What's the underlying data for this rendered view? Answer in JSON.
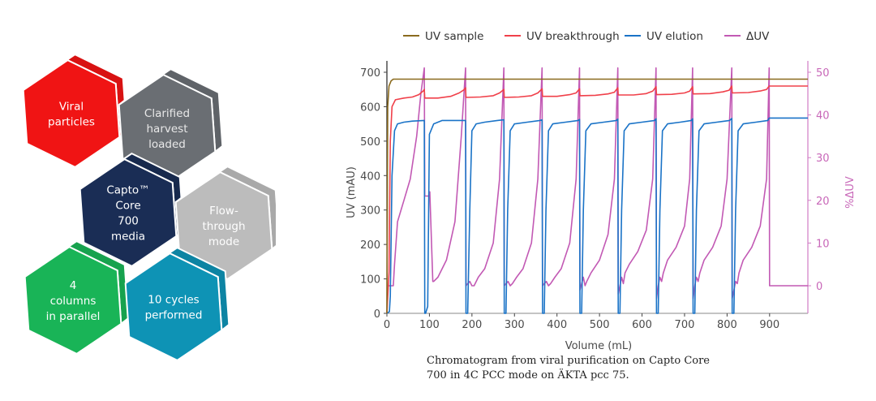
{
  "infographic": {
    "hexagons": [
      {
        "id": "viral",
        "lines": [
          "Viral",
          "particles"
        ],
        "color": "#f01414",
        "text_color": "#ffffff"
      },
      {
        "id": "harvest",
        "lines": [
          "Clarified",
          "harvest",
          "loaded"
        ],
        "color": "#6a6e73",
        "text_color": "#e8e8e8"
      },
      {
        "id": "media",
        "lines": [
          "Capto™",
          "Core",
          "700",
          "media"
        ],
        "color": "#1a2d55",
        "text_color": "#ffffff"
      },
      {
        "id": "flow",
        "lines": [
          "Flow-",
          "through",
          "mode"
        ],
        "color": "#bcbcbc",
        "text_color": "#ffffff"
      },
      {
        "id": "columns",
        "lines": [
          "4",
          "columns",
          "in parallel"
        ],
        "color": "#19b457",
        "text_color": "#ffffff"
      },
      {
        "id": "cycles",
        "lines": [
          "10 cycles",
          "performed"
        ],
        "color": "#0e93b5",
        "text_color": "#ffffff"
      }
    ]
  },
  "caption": {
    "line1": "Chromatogram from viral purification on Capto Core",
    "line2": "700 in 4C PCC mode on ÄKTA pcc 75."
  },
  "chart_data": {
    "type": "line",
    "title": "",
    "xlabel": "Volume (mL)",
    "ylabel": "UV (mAU)",
    "y2label": "%ΔUV",
    "xlim": [
      0,
      990
    ],
    "ylim": [
      0,
      730
    ],
    "y2lim": [
      -7,
      52.5
    ],
    "xticks": [
      0,
      100,
      200,
      300,
      400,
      500,
      600,
      700,
      800,
      900
    ],
    "yticks": [
      0,
      100,
      200,
      300,
      400,
      500,
      600,
      700
    ],
    "y2ticks": [
      0,
      10,
      20,
      30,
      40,
      50
    ],
    "legend_position": "top",
    "grid": false,
    "cycle_switch_volumes": [
      88,
      185,
      275,
      365,
      453,
      543,
      633,
      719,
      811,
      899
    ],
    "series": [
      {
        "name": "UV sample",
        "color": "#8a6a1e",
        "axis": "left",
        "x": [
          0,
          2,
          5,
          10,
          15,
          20,
          990
        ],
        "y": [
          0,
          600,
          660,
          675,
          680,
          680,
          680
        ]
      },
      {
        "name": "UV breakthrough",
        "color": "#f0404a",
        "axis": "left",
        "x": [
          0,
          5,
          8,
          12,
          20,
          40,
          60,
          75,
          85,
          88,
          89,
          120,
          150,
          170,
          180,
          185,
          186,
          220,
          250,
          265,
          275,
          276,
          310,
          340,
          355,
          365,
          366,
          400,
          430,
          445,
          453,
          454,
          490,
          520,
          535,
          543,
          544,
          580,
          610,
          625,
          633,
          634,
          670,
          700,
          712,
          719,
          720,
          760,
          790,
          805,
          811,
          812,
          850,
          880,
          893,
          899,
          900,
          990
        ],
        "y": [
          0,
          120,
          500,
          600,
          620,
          625,
          628,
          635,
          645,
          650,
          625,
          625,
          630,
          640,
          648,
          655,
          627,
          628,
          632,
          640,
          650,
          627,
          628,
          632,
          640,
          652,
          630,
          630,
          635,
          640,
          652,
          632,
          633,
          637,
          642,
          655,
          634,
          634,
          638,
          645,
          658,
          635,
          636,
          640,
          645,
          658,
          637,
          638,
          643,
          648,
          660,
          640,
          641,
          646,
          650,
          660,
          660,
          660
        ]
      },
      {
        "name": "UV elution",
        "color": "#1a73c7",
        "axis": "left",
        "x": [
          0,
          6,
          8,
          12,
          18,
          25,
          40,
          60,
          88,
          89,
          90,
          91,
          96,
          100,
          110,
          130,
          160,
          185,
          186,
          188,
          190,
          195,
          200,
          210,
          230,
          260,
          275,
          276,
          278,
          280,
          284,
          290,
          300,
          330,
          360,
          365,
          366,
          368,
          370,
          374,
          380,
          390,
          420,
          450,
          453,
          454,
          456,
          458,
          462,
          468,
          480,
          510,
          540,
          543,
          544,
          546,
          548,
          552,
          558,
          570,
          600,
          630,
          633,
          634,
          636,
          638,
          642,
          648,
          660,
          690,
          716,
          719,
          720,
          722,
          724,
          728,
          734,
          746,
          776,
          806,
          811,
          812,
          814,
          816,
          820,
          826,
          838,
          868,
          896,
          899,
          900,
          990
        ],
        "y": [
          0,
          5,
          50,
          400,
          530,
          550,
          555,
          558,
          560,
          0,
          0,
          0,
          20,
          520,
          550,
          560,
          560,
          560,
          0,
          0,
          0,
          300,
          530,
          550,
          555,
          560,
          562,
          0,
          0,
          0,
          300,
          530,
          550,
          555,
          560,
          562,
          0,
          0,
          0,
          300,
          530,
          550,
          555,
          560,
          563,
          0,
          0,
          0,
          300,
          530,
          550,
          555,
          560,
          564,
          0,
          0,
          0,
          300,
          530,
          550,
          555,
          560,
          565,
          0,
          0,
          0,
          300,
          530,
          550,
          555,
          560,
          565,
          0,
          0,
          0,
          300,
          530,
          550,
          555,
          560,
          566,
          0,
          0,
          0,
          300,
          530,
          550,
          555,
          560,
          567,
          567,
          567
        ]
      },
      {
        "name": "ΔUV",
        "color": "#c259b4",
        "axis": "right",
        "x": [
          0,
          3,
          15,
          18,
          25,
          40,
          55,
          70,
          80,
          88,
          89,
          100,
          101,
          108,
          110,
          120,
          140,
          160,
          175,
          185,
          186,
          190,
          195,
          200,
          205,
          215,
          230,
          250,
          265,
          275,
          276,
          280,
          285,
          290,
          295,
          305,
          320,
          340,
          355,
          365,
          366,
          370,
          375,
          380,
          385,
          395,
          410,
          430,
          445,
          453,
          454,
          458,
          462,
          466,
          470,
          480,
          500,
          520,
          535,
          543,
          544,
          548,
          552,
          556,
          560,
          570,
          590,
          610,
          625,
          633,
          634,
          638,
          642,
          646,
          650,
          660,
          680,
          700,
          712,
          719,
          720,
          724,
          728,
          732,
          736,
          746,
          766,
          786,
          800,
          811,
          812,
          816,
          820,
          824,
          828,
          838,
          858,
          878,
          893,
          899,
          900,
          910,
          990
        ],
        "y": [
          0,
          0,
          0,
          5,
          15,
          20,
          25,
          35,
          45,
          51,
          21,
          21,
          22,
          1,
          1,
          2,
          6,
          15,
          35,
          51,
          0,
          0.5,
          1,
          0,
          0,
          2,
          4,
          10,
          25,
          51,
          0,
          0.5,
          1,
          0,
          0.5,
          2,
          4,
          10,
          25,
          51,
          0,
          0.5,
          1,
          0,
          0.5,
          2,
          4,
          10,
          25,
          51,
          -1,
          0.5,
          2,
          0,
          1,
          3,
          6,
          12,
          25,
          51,
          -2,
          0,
          2,
          0.5,
          3,
          5,
          8,
          13,
          25,
          51,
          -3,
          0,
          2,
          1,
          3,
          6,
          9,
          14,
          25,
          51,
          -3,
          0,
          2,
          1,
          3,
          6,
          9,
          14,
          25,
          51,
          -3,
          -1,
          1,
          0.5,
          3,
          6,
          9,
          14,
          25,
          51,
          0,
          0,
          0
        ]
      }
    ]
  }
}
